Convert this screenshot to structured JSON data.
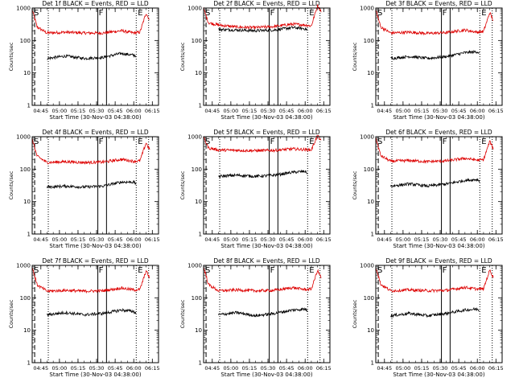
{
  "figure": {
    "xlabel": "Start Time (30-Nov-03 04:38:00)",
    "ylabel": "Counts/sec",
    "series_colors": {
      "events": "#000000",
      "lld": "#dd0000"
    },
    "marker_labels": [
      "S",
      "F",
      "E"
    ]
  },
  "chart_data": [
    {
      "type": "line",
      "title": "Det 1f BLACK = Events, RED = LLD",
      "x_ticks": [
        "04:45",
        "05:00",
        "05:15",
        "05:30",
        "05:45",
        "06:00",
        "06:15"
      ],
      "y_ticks": [
        "1",
        "10",
        "100",
        "1000"
      ],
      "y_scale": "log",
      "ylim": [
        1,
        1000
      ],
      "series": [
        {
          "name": "LLD",
          "color": "#dd0000",
          "x": [
            "04:38",
            "04:42",
            "04:50",
            "05:05",
            "05:20",
            "05:35",
            "05:50",
            "06:00",
            "06:05",
            "06:10",
            "06:13"
          ],
          "values": [
            900,
            260,
            170,
            180,
            170,
            170,
            200,
            170,
            180,
            700,
            400
          ]
        },
        {
          "name": "Events",
          "color": "#000000",
          "x": [
            "04:50",
            "05:05",
            "05:20",
            "05:35",
            "05:50",
            "06:00",
            "06:02"
          ],
          "values": [
            28,
            33,
            28,
            30,
            40,
            35,
            33
          ]
        }
      ],
      "vlines": {
        "dashed": [
          "04:40"
        ],
        "dotted": [
          "04:51",
          "06:02",
          "06:12"
        ],
        "solid": [
          "05:31",
          "05:38"
        ]
      }
    },
    {
      "type": "line",
      "title": "Det 2f BLACK = Events, RED = LLD",
      "x_ticks": [
        "04:45",
        "05:00",
        "05:15",
        "05:30",
        "05:45",
        "06:00",
        "06:15"
      ],
      "y_ticks": [
        "1",
        "10",
        "100",
        "1000"
      ],
      "y_scale": "log",
      "ylim": [
        1,
        1000
      ],
      "series": [
        {
          "name": "LLD",
          "color": "#dd0000",
          "x": [
            "04:38",
            "04:42",
            "04:50",
            "05:05",
            "05:20",
            "05:35",
            "05:50",
            "06:00",
            "06:05",
            "06:10",
            "06:13"
          ],
          "values": [
            950,
            350,
            300,
            260,
            250,
            270,
            320,
            300,
            280,
            1200,
            800
          ]
        },
        {
          "name": "Events",
          "color": "#000000",
          "x": [
            "04:50",
            "05:05",
            "05:20",
            "05:35",
            "05:50",
            "06:00",
            "06:02"
          ],
          "values": [
            220,
            210,
            200,
            210,
            250,
            230,
            210
          ]
        }
      ],
      "vlines": {
        "dashed": [
          "04:40"
        ],
        "dotted": [
          "04:51",
          "06:02",
          "06:12"
        ],
        "solid": [
          "05:31",
          "05:38"
        ]
      }
    },
    {
      "type": "line",
      "title": "Det 3f BLACK = Events, RED = LLD",
      "x_ticks": [
        "04:45",
        "05:00",
        "05:15",
        "05:30",
        "05:45",
        "06:00",
        "06:15"
      ],
      "y_ticks": [
        "1",
        "10",
        "100",
        "1000"
      ],
      "y_scale": "log",
      "ylim": [
        1,
        1000
      ],
      "series": [
        {
          "name": "LLD",
          "color": "#dd0000",
          "x": [
            "04:38",
            "04:42",
            "04:50",
            "05:05",
            "05:20",
            "05:35",
            "05:50",
            "06:00",
            "06:05",
            "06:10",
            "06:13"
          ],
          "values": [
            900,
            260,
            170,
            180,
            165,
            175,
            210,
            180,
            190,
            720,
            400
          ]
        },
        {
          "name": "Events",
          "color": "#000000",
          "x": [
            "04:50",
            "05:05",
            "05:20",
            "05:35",
            "05:50",
            "06:00",
            "06:02"
          ],
          "values": [
            28,
            32,
            28,
            32,
            42,
            45,
            40
          ]
        }
      ],
      "vlines": {
        "dashed": [
          "04:40"
        ],
        "dotted": [
          "04:51",
          "06:02",
          "06:12"
        ],
        "solid": [
          "05:31",
          "05:38"
        ]
      }
    },
    {
      "type": "line",
      "title": "Det 4f BLACK = Events, RED = LLD",
      "x_ticks": [
        "04:45",
        "05:00",
        "05:15",
        "05:30",
        "05:45",
        "06:00",
        "06:15"
      ],
      "y_ticks": [
        "1",
        "10",
        "100",
        "1000"
      ],
      "y_scale": "log",
      "ylim": [
        1,
        1000
      ],
      "series": [
        {
          "name": "LLD",
          "color": "#dd0000",
          "x": [
            "04:38",
            "04:42",
            "04:50",
            "05:05",
            "05:20",
            "05:35",
            "05:50",
            "06:00",
            "06:05",
            "06:10",
            "06:13"
          ],
          "values": [
            850,
            250,
            160,
            170,
            160,
            165,
            200,
            175,
            180,
            650,
            380
          ]
        },
        {
          "name": "Events",
          "color": "#000000",
          "x": [
            "04:50",
            "05:05",
            "05:20",
            "05:35",
            "05:50",
            "06:00",
            "06:02"
          ],
          "values": [
            28,
            30,
            28,
            30,
            40,
            40,
            35
          ]
        }
      ],
      "vlines": {
        "dashed": [
          "04:40"
        ],
        "dotted": [
          "04:51",
          "06:02",
          "06:12"
        ],
        "solid": [
          "05:31",
          "05:38"
        ]
      }
    },
    {
      "type": "line",
      "title": "Det 5f BLACK = Events, RED = LLD",
      "x_ticks": [
        "04:45",
        "05:00",
        "05:15",
        "05:30",
        "05:45",
        "06:00",
        "06:15"
      ],
      "y_ticks": [
        "1",
        "10",
        "100",
        "1000"
      ],
      "y_scale": "log",
      "ylim": [
        1,
        1000
      ],
      "series": [
        {
          "name": "LLD",
          "color": "#dd0000",
          "x": [
            "04:38",
            "04:42",
            "04:50",
            "05:05",
            "05:20",
            "05:35",
            "05:50",
            "06:00",
            "06:05",
            "06:10",
            "06:13"
          ],
          "values": [
            950,
            450,
            390,
            380,
            370,
            380,
            420,
            400,
            390,
            1100,
            700
          ]
        },
        {
          "name": "Events",
          "color": "#000000",
          "x": [
            "04:50",
            "05:05",
            "05:20",
            "05:35",
            "05:50",
            "06:00",
            "06:02"
          ],
          "values": [
            60,
            65,
            60,
            65,
            80,
            85,
            75
          ]
        }
      ],
      "vlines": {
        "dashed": [
          "04:40"
        ],
        "dotted": [
          "04:51",
          "06:02",
          "06:12"
        ],
        "solid": [
          "05:31",
          "05:38"
        ]
      }
    },
    {
      "type": "line",
      "title": "Det 6f BLACK = Events, RED = LLD",
      "x_ticks": [
        "04:45",
        "05:00",
        "05:15",
        "05:30",
        "05:45",
        "06:00",
        "06:15"
      ],
      "y_ticks": [
        "1",
        "10",
        "100",
        "1000"
      ],
      "y_scale": "log",
      "ylim": [
        1,
        1000
      ],
      "series": [
        {
          "name": "LLD",
          "color": "#dd0000",
          "x": [
            "04:38",
            "04:42",
            "04:50",
            "05:05",
            "05:20",
            "05:35",
            "05:50",
            "06:00",
            "06:05",
            "06:10",
            "06:13"
          ],
          "values": [
            900,
            260,
            175,
            185,
            170,
            180,
            215,
            190,
            195,
            720,
            420
          ]
        },
        {
          "name": "Events",
          "color": "#000000",
          "x": [
            "04:50",
            "05:05",
            "05:20",
            "05:35",
            "05:50",
            "06:00",
            "06:02"
          ],
          "values": [
            30,
            35,
            30,
            35,
            45,
            48,
            42
          ]
        }
      ],
      "vlines": {
        "dashed": [
          "04:40"
        ],
        "dotted": [
          "04:51",
          "06:02",
          "06:12"
        ],
        "solid": [
          "05:31",
          "05:38"
        ]
      }
    },
    {
      "type": "line",
      "title": "Det 7f BLACK = Events, RED = LLD",
      "x_ticks": [
        "04:45",
        "05:00",
        "05:15",
        "05:30",
        "05:45",
        "06:00",
        "06:15"
      ],
      "y_ticks": [
        "1",
        "10",
        "100",
        "1000"
      ],
      "y_scale": "log",
      "ylim": [
        1,
        1000
      ],
      "series": [
        {
          "name": "LLD",
          "color": "#dd0000",
          "x": [
            "04:38",
            "04:42",
            "04:50",
            "05:05",
            "05:20",
            "05:35",
            "05:50",
            "06:00",
            "06:05",
            "06:10",
            "06:13"
          ],
          "values": [
            880,
            250,
            160,
            170,
            160,
            165,
            200,
            175,
            180,
            680,
            400
          ]
        },
        {
          "name": "Events",
          "color": "#000000",
          "x": [
            "04:50",
            "05:05",
            "05:20",
            "05:35",
            "05:50",
            "06:00",
            "06:02"
          ],
          "values": [
            30,
            35,
            30,
            33,
            42,
            38,
            32
          ]
        }
      ],
      "vlines": {
        "dashed": [
          "04:40"
        ],
        "dotted": [
          "04:51",
          "06:02",
          "06:12"
        ],
        "solid": [
          "05:31",
          "05:38"
        ]
      }
    },
    {
      "type": "line",
      "title": "Det 8f BLACK = Events, RED = LLD",
      "x_ticks": [
        "04:45",
        "05:00",
        "05:15",
        "05:30",
        "05:45",
        "06:00",
        "06:15"
      ],
      "y_ticks": [
        "1",
        "10",
        "100",
        "1000"
      ],
      "y_scale": "log",
      "ylim": [
        1,
        1000
      ],
      "series": [
        {
          "name": "LLD",
          "color": "#dd0000",
          "x": [
            "04:38",
            "04:42",
            "04:50",
            "05:05",
            "05:20",
            "05:35",
            "05:50",
            "06:00",
            "06:05",
            "06:10",
            "06:13"
          ],
          "values": [
            900,
            255,
            165,
            175,
            165,
            170,
            205,
            180,
            185,
            700,
            410
          ]
        },
        {
          "name": "Events",
          "color": "#000000",
          "x": [
            "04:50",
            "05:05",
            "05:20",
            "05:35",
            "05:50",
            "06:00",
            "06:02"
          ],
          "values": [
            30,
            35,
            28,
            33,
            42,
            45,
            38
          ]
        }
      ],
      "vlines": {
        "dashed": [
          "04:40"
        ],
        "dotted": [
          "04:51",
          "06:02",
          "06:12"
        ],
        "solid": [
          "05:31",
          "05:38"
        ]
      }
    },
    {
      "type": "line",
      "title": "Det 9f BLACK = Events, RED = LLD",
      "x_ticks": [
        "04:45",
        "05:00",
        "05:15",
        "05:30",
        "05:45",
        "06:00",
        "06:15"
      ],
      "y_ticks": [
        "1",
        "10",
        "100",
        "1000"
      ],
      "y_scale": "log",
      "ylim": [
        1,
        1000
      ],
      "series": [
        {
          "name": "LLD",
          "color": "#dd0000",
          "x": [
            "04:38",
            "04:42",
            "04:50",
            "05:05",
            "05:20",
            "05:35",
            "05:50",
            "06:00",
            "06:05",
            "06:10",
            "06:13"
          ],
          "values": [
            900,
            260,
            165,
            175,
            165,
            170,
            210,
            185,
            190,
            720,
            420
          ]
        },
        {
          "name": "Events",
          "color": "#000000",
          "x": [
            "04:50",
            "05:05",
            "05:20",
            "05:35",
            "05:50",
            "06:00",
            "06:02"
          ],
          "values": [
            28,
            33,
            28,
            33,
            42,
            45,
            40
          ]
        }
      ],
      "vlines": {
        "dashed": [
          "04:40"
        ],
        "dotted": [
          "04:51",
          "06:02",
          "06:12"
        ],
        "solid": [
          "05:31",
          "05:38"
        ]
      }
    }
  ]
}
